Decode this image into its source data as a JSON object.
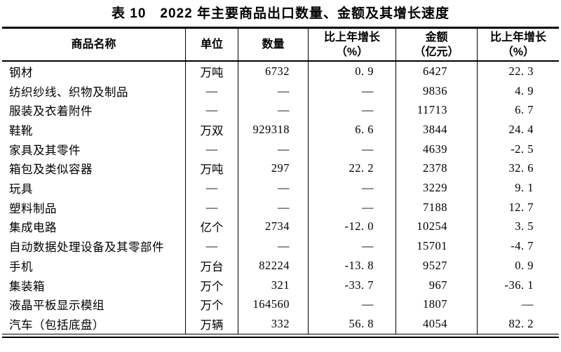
{
  "title": "表 10　2022 年主要商品出口数量、金额及其增长速度",
  "table": {
    "headers": [
      {
        "label": "商品名称"
      },
      {
        "label": "单位"
      },
      {
        "label": "数量"
      },
      {
        "label": "比上年增长",
        "sub": "（%）"
      },
      {
        "label": "金额",
        "sub": "（亿元）"
      },
      {
        "label": "比上年增长",
        "sub": "（%）"
      }
    ],
    "rows": [
      [
        "钢材",
        "万吨",
        "6732",
        "0.9",
        "6427",
        "22.3"
      ],
      [
        "纺织纱线、织物及制品",
        "—",
        "—",
        "—",
        "9836",
        "4.9"
      ],
      [
        "服装及衣着附件",
        "—",
        "—",
        "—",
        "11713",
        "6.7"
      ],
      [
        "鞋靴",
        "万双",
        "929318",
        "6.6",
        "3844",
        "24.4"
      ],
      [
        "家具及其零件",
        "—",
        "—",
        "—",
        "4639",
        "-2.5"
      ],
      [
        "箱包及类似容器",
        "万吨",
        "297",
        "22.2",
        "2378",
        "32.6"
      ],
      [
        "玩具",
        "—",
        "—",
        "—",
        "3229",
        "9.1"
      ],
      [
        "塑料制品",
        "—",
        "—",
        "—",
        "7188",
        "12.7"
      ],
      [
        "集成电路",
        "亿个",
        "2734",
        "-12.0",
        "10254",
        "3.5"
      ],
      [
        "自动数据处理设备及其零部件",
        "—",
        "—",
        "—",
        "15701",
        "-4.7"
      ],
      [
        "手机",
        "万台",
        "82224",
        "-13.8",
        "9527",
        "0.9"
      ],
      [
        "集装箱",
        "万个",
        "321",
        "-33.7",
        "967",
        "-36.1"
      ],
      [
        "液晶平板显示模组",
        "万个",
        "164560",
        "—",
        "1807",
        "—"
      ],
      [
        "汽车（包括底盘）",
        "万辆",
        "332",
        "56.8",
        "4054",
        "82.2"
      ]
    ]
  }
}
